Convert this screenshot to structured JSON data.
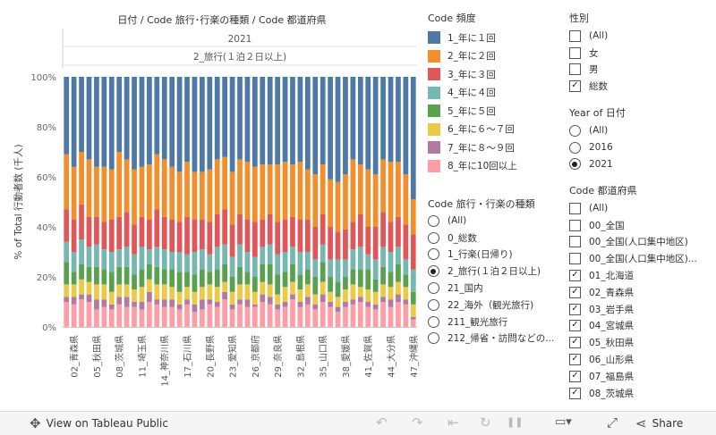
{
  "chart_data": {
    "type": "bar",
    "stacked": "percent",
    "title": "日付 / Code 旅行･行楽の種類 / Code 都道府県",
    "header_year": "2021",
    "header_trip": "2_旅行(１泊２日以上)",
    "ylabel": "% of Total 行動者数 (千人)",
    "yticks": [
      "0%",
      "20%",
      "40%",
      "60%",
      "80%",
      "100%"
    ],
    "ylim": [
      0,
      100
    ],
    "grid": false,
    "legend_position": "right",
    "x_tick_labels": [
      "02_青森県",
      "05_秋田県",
      "08_茨城県",
      "11_埼玉県",
      "14_神奈川県",
      "17_石川県",
      "20_長野県",
      "23_愛知県",
      "26_京都府",
      "29_奈良県",
      "32_島根県",
      "35_山口県",
      "38_愛媛県",
      "41_佐賀県",
      "44_大分県",
      "47_沖縄県"
    ],
    "series": [
      {
        "name": "8_年に10回以上",
        "color": "#ff9da7",
        "values": [
          10,
          9,
          11,
          10,
          7,
          8,
          7,
          9,
          8,
          8,
          7,
          10,
          9,
          8,
          8,
          7,
          9,
          6,
          7,
          9,
          8,
          11,
          7,
          9,
          8,
          8,
          10,
          9,
          7,
          8,
          11,
          8,
          9,
          7,
          10,
          8,
          6,
          8,
          9,
          10,
          8,
          7,
          10,
          8,
          10,
          9,
          3
        ]
      },
      {
        "name": "7_年に８～９回",
        "color": "#b07aa1",
        "values": [
          2,
          3,
          2,
          3,
          4,
          3,
          2,
          3,
          4,
          2,
          3,
          4,
          2,
          3,
          3,
          2,
          2,
          3,
          4,
          2,
          2,
          3,
          2,
          2,
          3,
          1,
          3,
          3,
          2,
          2,
          2,
          2,
          3,
          2,
          3,
          2,
          2,
          2,
          2,
          2,
          2,
          2,
          2,
          3,
          3,
          2,
          1
        ]
      },
      {
        "name": "6_年に６～７回",
        "color": "#edc948",
        "values": [
          5,
          5,
          6,
          5,
          6,
          6,
          5,
          5,
          5,
          5,
          6,
          5,
          6,
          6,
          5,
          5,
          5,
          5,
          5,
          6,
          6,
          4,
          5,
          6,
          6,
          5,
          5,
          5,
          4,
          6,
          5,
          5,
          5,
          4,
          5,
          4,
          4,
          5,
          6,
          4,
          5,
          5,
          5,
          5,
          5,
          5,
          5
        ]
      },
      {
        "name": "5_年に５回",
        "color": "#59a14f",
        "values": [
          9,
          5,
          6,
          6,
          7,
          6,
          8,
          7,
          7,
          6,
          7,
          6,
          7,
          6,
          7,
          8,
          6,
          7,
          7,
          5,
          7,
          7,
          6,
          7,
          5,
          6,
          7,
          8,
          8,
          6,
          7,
          6,
          6,
          7,
          8,
          6,
          6,
          5,
          6,
          7,
          8,
          5,
          7,
          6,
          7,
          5,
          5
        ]
      },
      {
        "name": "4_年に４回",
        "color": "#76b7b2",
        "values": [
          8,
          8,
          10,
          8,
          9,
          8,
          8,
          7,
          8,
          8,
          9,
          6,
          8,
          8,
          7,
          8,
          7,
          9,
          8,
          7,
          9,
          8,
          8,
          9,
          8,
          8,
          7,
          8,
          8,
          8,
          7,
          9,
          7,
          7,
          7,
          7,
          9,
          7,
          8,
          9,
          6,
          8,
          8,
          8,
          7,
          6,
          9
        ]
      },
      {
        "name": "3_年に３回",
        "color": "#e15759",
        "values": [
          13,
          13,
          14,
          12,
          11,
          11,
          13,
          13,
          14,
          12,
          12,
          12,
          15,
          13,
          13,
          12,
          15,
          13,
          12,
          13,
          13,
          14,
          13,
          12,
          13,
          14,
          11,
          12,
          13,
          13,
          12,
          13,
          13,
          13,
          12,
          13,
          11,
          12,
          11,
          13,
          11,
          13,
          14,
          12,
          12,
          14,
          14
        ]
      },
      {
        "name": "2_年に２回",
        "color": "#f28e2b",
        "values": [
          22,
          21,
          21,
          23,
          20,
          22,
          20,
          26,
          21,
          22,
          20,
          22,
          22,
          23,
          21,
          20,
          22,
          19,
          19,
          21,
          22,
          21,
          21,
          22,
          23,
          22,
          22,
          20,
          23,
          23,
          21,
          23,
          20,
          21,
          20,
          19,
          20,
          22,
          25,
          20,
          23,
          21,
          21,
          24,
          22,
          20,
          14
        ]
      },
      {
        "name": "1_年に１回",
        "color": "#4e79a7",
        "values": [
          31,
          36,
          30,
          33,
          36,
          36,
          37,
          30,
          33,
          37,
          36,
          35,
          31,
          33,
          36,
          38,
          34,
          38,
          38,
          37,
          33,
          32,
          38,
          33,
          34,
          36,
          35,
          35,
          35,
          34,
          35,
          34,
          37,
          39,
          35,
          41,
          42,
          39,
          33,
          35,
          37,
          39,
          33,
          34,
          34,
          39,
          49
        ]
      }
    ]
  },
  "legend": {
    "title": "Code 頻度",
    "items": [
      {
        "label": "1_年に１回",
        "color": "#4e79a7"
      },
      {
        "label": "2_年に２回",
        "color": "#f28e2b"
      },
      {
        "label": "3_年に３回",
        "color": "#e15759"
      },
      {
        "label": "4_年に４回",
        "color": "#76b7b2"
      },
      {
        "label": "5_年に５回",
        "color": "#59a14f"
      },
      {
        "label": "6_年に６～７回",
        "color": "#edc948"
      },
      {
        "label": "7_年に８～９回",
        "color": "#b07aa1"
      },
      {
        "label": "8_年に10回以上",
        "color": "#ff9da7"
      }
    ]
  },
  "trip_filter": {
    "title": "Code 旅行・行楽の種類",
    "options": [
      {
        "label": "(All)",
        "selected": false
      },
      {
        "label": "0_総数",
        "selected": false
      },
      {
        "label": "1_行楽(日帰り)",
        "selected": false
      },
      {
        "label": "2_旅行(１泊２日以上)",
        "selected": true
      },
      {
        "label": "21_国内",
        "selected": false
      },
      {
        "label": "22_海外（観光旅行)",
        "selected": false
      },
      {
        "label": "211_観光旅行",
        "selected": false
      },
      {
        "label": "212_帰省・訪問などの...",
        "selected": false
      }
    ]
  },
  "sex_filter": {
    "title": "性別",
    "options": [
      {
        "label": "(All)",
        "checked": false
      },
      {
        "label": "女",
        "checked": false
      },
      {
        "label": "男",
        "checked": false
      },
      {
        "label": "総数",
        "checked": true
      }
    ]
  },
  "year_filter": {
    "title": "Year of 日付",
    "options": [
      {
        "label": "(All)",
        "selected": false
      },
      {
        "label": "2016",
        "selected": false
      },
      {
        "label": "2021",
        "selected": true
      }
    ]
  },
  "pref_filter": {
    "title": "Code 都道府県",
    "options": [
      {
        "label": "(All)",
        "checked": false
      },
      {
        "label": "00_全国",
        "checked": false
      },
      {
        "label": "00_全国(人口集中地区)",
        "checked": false
      },
      {
        "label": "00_全国(人口集中地区)...",
        "checked": false
      },
      {
        "label": "01_北海道",
        "checked": true
      },
      {
        "label": "02_青森県",
        "checked": true
      },
      {
        "label": "03_岩手県",
        "checked": true
      },
      {
        "label": "04_宮城県",
        "checked": true
      },
      {
        "label": "05_秋田県",
        "checked": true
      },
      {
        "label": "06_山形県",
        "checked": true
      },
      {
        "label": "07_福島県",
        "checked": true
      },
      {
        "label": "08_茨城県",
        "checked": true
      }
    ]
  },
  "toolbar": {
    "view_label": "View on Tableau Public",
    "share_label": "Share",
    "move_icon": "✥",
    "undo_icon": "↶",
    "redo_icon": "↷",
    "revert_icon": "⇤",
    "refresh_icon": "↻",
    "pause_icon": "❚❚",
    "download_icon": "▭▾",
    "fullscreen_icon": "⤢",
    "share_icon": "⋖"
  }
}
